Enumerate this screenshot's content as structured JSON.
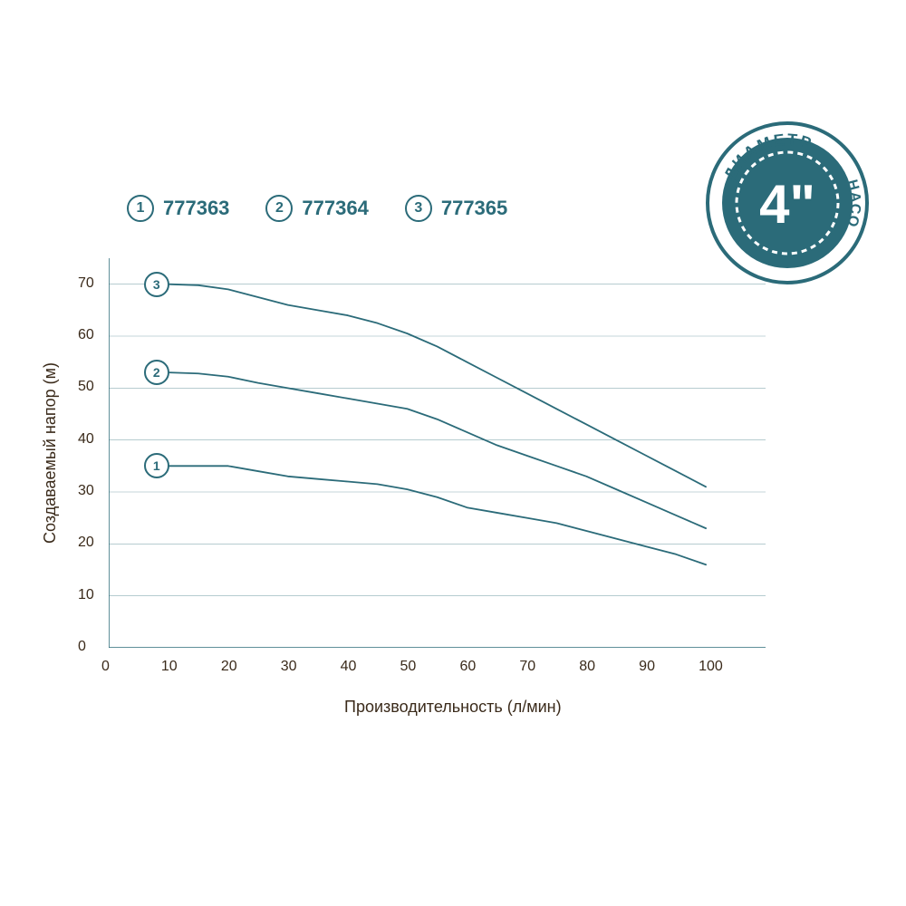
{
  "colors": {
    "brand": "#2b6b79",
    "text": "#3a2a1a",
    "background": "#ffffff",
    "axis": "#2b6b79",
    "grid": "#2b6b79"
  },
  "legend": {
    "items": [
      {
        "num": "1",
        "label": "777363"
      },
      {
        "num": "2",
        "label": "777364"
      },
      {
        "num": "3",
        "label": "777365"
      }
    ],
    "fontsize": 22,
    "circle_border": "#2b6b79",
    "label_color": "#2b6b79"
  },
  "badge": {
    "text_top": "ДИАМЕТР",
    "text_side": "НАСОСА",
    "center": "4\"",
    "fill": "#2b6b79",
    "outer_border": "#2b6b79",
    "inner_dash": "#ffffff",
    "text_color_arc": "#2b6b79",
    "center_fontsize": 56
  },
  "chart": {
    "type": "line",
    "xlabel": "Производительность (л/мин)",
    "ylabel": "Создаваемый напор (м)",
    "label_fontsize": 18,
    "tick_fontsize": 16,
    "xlim": [
      0,
      110
    ],
    "ylim": [
      0,
      75
    ],
    "xtick_step": 10,
    "xtick_max_label": 100,
    "ytick_step": 10,
    "ytick_max_label": 70,
    "grid_ytick_step": 10,
    "axis_color": "#2b6b79",
    "grid_color": "#2b6b79",
    "grid_width": 0.6,
    "line_color": "#2b6b79",
    "line_width": 1.8,
    "series": [
      {
        "marker": "1",
        "marker_x": 8,
        "points": [
          [
            10,
            35
          ],
          [
            15,
            35
          ],
          [
            20,
            35
          ],
          [
            25,
            34
          ],
          [
            30,
            33
          ],
          [
            35,
            32.5
          ],
          [
            40,
            32
          ],
          [
            45,
            31.5
          ],
          [
            50,
            30.5
          ],
          [
            55,
            29
          ],
          [
            60,
            27
          ],
          [
            65,
            26
          ],
          [
            70,
            25
          ],
          [
            75,
            24
          ],
          [
            80,
            22.5
          ],
          [
            85,
            21
          ],
          [
            90,
            19.5
          ],
          [
            95,
            18
          ],
          [
            100,
            16
          ]
        ]
      },
      {
        "marker": "2",
        "marker_x": 8,
        "points": [
          [
            10,
            53
          ],
          [
            15,
            52.8
          ],
          [
            20,
            52.2
          ],
          [
            25,
            51
          ],
          [
            30,
            50
          ],
          [
            35,
            49
          ],
          [
            40,
            48
          ],
          [
            45,
            47
          ],
          [
            50,
            46
          ],
          [
            55,
            44
          ],
          [
            60,
            41.5
          ],
          [
            65,
            39
          ],
          [
            70,
            37
          ],
          [
            75,
            35
          ],
          [
            80,
            33
          ],
          [
            85,
            30.5
          ],
          [
            90,
            28
          ],
          [
            95,
            25.5
          ],
          [
            100,
            23
          ]
        ]
      },
      {
        "marker": "3",
        "marker_x": 8,
        "points": [
          [
            10,
            70
          ],
          [
            15,
            69.8
          ],
          [
            20,
            69
          ],
          [
            25,
            67.5
          ],
          [
            30,
            66
          ],
          [
            35,
            65
          ],
          [
            40,
            64
          ],
          [
            45,
            62.5
          ],
          [
            50,
            60.5
          ],
          [
            55,
            58
          ],
          [
            60,
            55
          ],
          [
            65,
            52
          ],
          [
            70,
            49
          ],
          [
            75,
            46
          ],
          [
            80,
            43
          ],
          [
            85,
            40
          ],
          [
            90,
            37
          ],
          [
            95,
            34
          ],
          [
            100,
            31
          ]
        ]
      }
    ]
  }
}
